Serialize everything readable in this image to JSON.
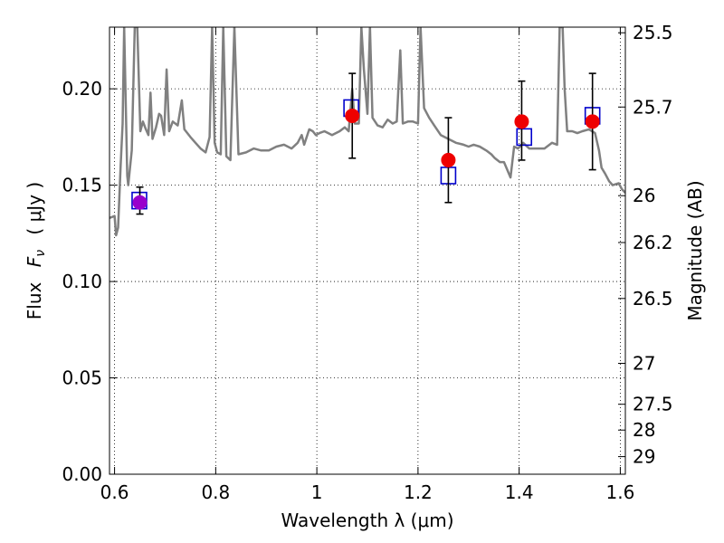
{
  "chart_data": {
    "type": "scatter",
    "xlabel": "Wavelength  λ (μm)",
    "ylabel_text": "Flux",
    "ylabel_math": "F",
    "ylabel_math_sub": "ν",
    "ylabel_unit": "( μJy )",
    "y2label": "Magnitude (AB)",
    "xlim": [
      0.59,
      1.61
    ],
    "ylim": [
      0.0,
      0.232
    ],
    "grid": true,
    "x_ticks": [
      {
        "value": 0.6,
        "label": "0.6"
      },
      {
        "value": 0.8,
        "label": "0.8"
      },
      {
        "value": 1.0,
        "label": "1"
      },
      {
        "value": 1.2,
        "label": "1.2"
      },
      {
        "value": 1.4,
        "label": "1.4"
      },
      {
        "value": 1.6,
        "label": "1.6"
      }
    ],
    "y_ticks": [
      {
        "value": 0.0,
        "label": "0.00"
      },
      {
        "value": 0.05,
        "label": "0.05"
      },
      {
        "value": 0.1,
        "label": "0.10"
      },
      {
        "value": 0.15,
        "label": "0.15"
      },
      {
        "value": 0.2,
        "label": "0.20"
      }
    ],
    "y2_ticks": [
      {
        "value": 25.5,
        "label": "25.5"
      },
      {
        "value": 25.7,
        "label": "25.7"
      },
      {
        "value": 26.0,
        "label": "26"
      },
      {
        "value": 26.2,
        "label": "26.2"
      },
      {
        "value": 26.5,
        "label": "26.5"
      },
      {
        "value": 27.0,
        "label": "27"
      },
      {
        "value": 27.5,
        "label": "27.5"
      },
      {
        "value": 28.0,
        "label": "28"
      },
      {
        "value": 29.0,
        "label": "29"
      }
    ],
    "series": [
      {
        "kind": "line",
        "color": "#808080",
        "points": [
          [
            0.59,
            0.133
          ],
          [
            0.6,
            0.134
          ],
          [
            0.603,
            0.124
          ],
          [
            0.607,
            0.128
          ],
          [
            0.612,
            0.16
          ],
          [
            0.616,
            0.182
          ],
          [
            0.619,
            0.232
          ],
          [
            0.625,
            0.155
          ],
          [
            0.627,
            0.15
          ],
          [
            0.634,
            0.168
          ],
          [
            0.64,
            0.232
          ],
          [
            0.645,
            0.232
          ],
          [
            0.651,
            0.178
          ],
          [
            0.656,
            0.183
          ],
          [
            0.662,
            0.179
          ],
          [
            0.667,
            0.176
          ],
          [
            0.671,
            0.198
          ],
          [
            0.675,
            0.174
          ],
          [
            0.682,
            0.18
          ],
          [
            0.688,
            0.187
          ],
          [
            0.692,
            0.186
          ],
          [
            0.698,
            0.176
          ],
          [
            0.703,
            0.21
          ],
          [
            0.708,
            0.178
          ],
          [
            0.715,
            0.183
          ],
          [
            0.725,
            0.181
          ],
          [
            0.733,
            0.194
          ],
          [
            0.738,
            0.179
          ],
          [
            0.75,
            0.175
          ],
          [
            0.76,
            0.172
          ],
          [
            0.77,
            0.169
          ],
          [
            0.78,
            0.167
          ],
          [
            0.788,
            0.175
          ],
          [
            0.793,
            0.232
          ],
          [
            0.798,
            0.172
          ],
          [
            0.803,
            0.167
          ],
          [
            0.81,
            0.166
          ],
          [
            0.815,
            0.232
          ],
          [
            0.821,
            0.165
          ],
          [
            0.829,
            0.163
          ],
          [
            0.837,
            0.232
          ],
          [
            0.845,
            0.166
          ],
          [
            0.86,
            0.167
          ],
          [
            0.875,
            0.169
          ],
          [
            0.89,
            0.168
          ],
          [
            0.905,
            0.168
          ],
          [
            0.92,
            0.17
          ],
          [
            0.935,
            0.171
          ],
          [
            0.95,
            0.169
          ],
          [
            0.962,
            0.172
          ],
          [
            0.97,
            0.176
          ],
          [
            0.975,
            0.171
          ],
          [
            0.985,
            0.179
          ],
          [
            0.992,
            0.178
          ],
          [
            0.998,
            0.176
          ],
          [
            1.005,
            0.177
          ],
          [
            1.015,
            0.178
          ],
          [
            1.03,
            0.176
          ],
          [
            1.045,
            0.178
          ],
          [
            1.055,
            0.18
          ],
          [
            1.063,
            0.178
          ],
          [
            1.07,
            0.2
          ],
          [
            1.075,
            0.182
          ],
          [
            1.083,
            0.182
          ],
          [
            1.088,
            0.232
          ],
          [
            1.093,
            0.21
          ],
          [
            1.1,
            0.187
          ],
          [
            1.105,
            0.232
          ],
          [
            1.11,
            0.185
          ],
          [
            1.12,
            0.181
          ],
          [
            1.13,
            0.18
          ],
          [
            1.14,
            0.184
          ],
          [
            1.15,
            0.182
          ],
          [
            1.158,
            0.183
          ],
          [
            1.165,
            0.22
          ],
          [
            1.17,
            0.182
          ],
          [
            1.18,
            0.183
          ],
          [
            1.19,
            0.183
          ],
          [
            1.2,
            0.182
          ],
          [
            1.205,
            0.232
          ],
          [
            1.212,
            0.19
          ],
          [
            1.222,
            0.185
          ],
          [
            1.232,
            0.181
          ],
          [
            1.245,
            0.176
          ],
          [
            1.26,
            0.174
          ],
          [
            1.275,
            0.172
          ],
          [
            1.29,
            0.171
          ],
          [
            1.3,
            0.17
          ],
          [
            1.31,
            0.171
          ],
          [
            1.322,
            0.17
          ],
          [
            1.335,
            0.168
          ],
          [
            1.345,
            0.166
          ],
          [
            1.352,
            0.164
          ],
          [
            1.362,
            0.162
          ],
          [
            1.37,
            0.162
          ],
          [
            1.378,
            0.157
          ],
          [
            1.383,
            0.154
          ],
          [
            1.39,
            0.17
          ],
          [
            1.398,
            0.169
          ],
          [
            1.408,
            0.172
          ],
          [
            1.42,
            0.169
          ],
          [
            1.435,
            0.169
          ],
          [
            1.45,
            0.169
          ],
          [
            1.465,
            0.172
          ],
          [
            1.475,
            0.171
          ],
          [
            1.48,
            0.232
          ],
          [
            1.486,
            0.232
          ],
          [
            1.49,
            0.2
          ],
          [
            1.495,
            0.178
          ],
          [
            1.505,
            0.178
          ],
          [
            1.515,
            0.177
          ],
          [
            1.525,
            0.178
          ],
          [
            1.538,
            0.179
          ],
          [
            1.55,
            0.177
          ],
          [
            1.558,
            0.168
          ],
          [
            1.563,
            0.159
          ],
          [
            1.57,
            0.156
          ],
          [
            1.578,
            0.152
          ],
          [
            1.585,
            0.15
          ],
          [
            1.597,
            0.151
          ],
          [
            1.603,
            0.148
          ],
          [
            1.61,
            0.146
          ]
        ]
      },
      {
        "kind": "squares",
        "color": "#0000cc",
        "points": [
          [
            0.649,
            0.142
          ],
          [
            1.068,
            0.19
          ],
          [
            1.26,
            0.155
          ],
          [
            1.41,
            0.175
          ],
          [
            1.545,
            0.186
          ]
        ]
      },
      {
        "kind": "points",
        "color": "#ee0000",
        "points": [
          {
            "x": 1.07,
            "y": 0.186,
            "ylo": 0.164,
            "yhi": 0.208
          },
          {
            "x": 1.26,
            "y": 0.163,
            "ylo": 0.141,
            "yhi": 0.185
          },
          {
            "x": 1.405,
            "y": 0.183,
            "ylo": 0.163,
            "yhi": 0.204
          },
          {
            "x": 1.545,
            "y": 0.183,
            "ylo": 0.158,
            "yhi": 0.208
          }
        ]
      },
      {
        "kind": "points",
        "color": "#9900cc",
        "points": [
          {
            "x": 0.65,
            "y": 0.141,
            "ylo": 0.135,
            "yhi": 0.149
          }
        ]
      }
    ]
  }
}
